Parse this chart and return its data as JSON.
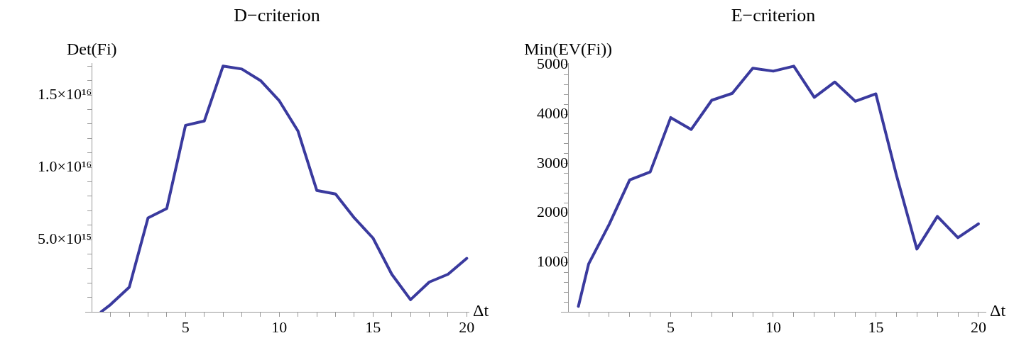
{
  "chart_data": [
    {
      "type": "line",
      "title": "D−criterion",
      "ylabel": "Det(Fi)",
      "xlabel": "Δt",
      "marker": "none",
      "x": [
        0.5,
        1,
        2,
        3,
        4,
        5,
        6,
        7,
        8,
        9,
        10,
        11,
        12,
        13,
        14,
        15,
        16,
        17,
        18,
        19,
        20
      ],
      "series": [
        {
          "color": "#3a3a9e",
          "values": [
            0,
            500000000000000.0,
            1700000000000000.0,
            6500000000000000.0,
            7150000000000000.0,
            1.29e+16,
            1.32e+16,
            1.7e+16,
            1.68e+16,
            1.6e+16,
            1.46e+16,
            1.25e+16,
            8400000000000000.0,
            8150000000000000.0,
            6500000000000000.0,
            5100000000000000.0,
            2600000000000000.0,
            840000000000000.0,
            2060000000000000.0,
            2600000000000000.0,
            3700000000000000.0
          ]
        }
      ],
      "xlim": [
        -0.35,
        20.1
      ],
      "ylim": [
        0,
        1.72e+16
      ],
      "xticks": [
        {
          "value": 1,
          "label": null
        },
        {
          "value": 2,
          "label": null
        },
        {
          "value": 3,
          "label": null
        },
        {
          "value": 4,
          "label": null
        },
        5,
        {
          "value": 6,
          "label": null
        },
        {
          "value": 7,
          "label": null
        },
        {
          "value": 8,
          "label": null
        },
        {
          "value": 9,
          "label": null
        },
        10,
        {
          "value": 11,
          "label": null
        },
        {
          "value": 12,
          "label": null
        },
        {
          "value": 13,
          "label": null
        },
        {
          "value": 14,
          "label": null
        },
        15,
        {
          "value": 16,
          "label": null
        },
        {
          "value": 17,
          "label": null
        },
        {
          "value": 18,
          "label": null
        },
        {
          "value": 19,
          "label": null
        },
        20
      ],
      "yticks": [
        {
          "value": 1000000000000000.0,
          "label": null
        },
        {
          "value": 2000000000000000.0,
          "label": null
        },
        {
          "value": 3000000000000000.0,
          "label": null
        },
        {
          "value": 4000000000000000.0,
          "label": null
        },
        {
          "value": 5000000000000000.0,
          "label": "5.0×10¹⁵"
        },
        {
          "value": 6000000000000000.0,
          "label": null
        },
        {
          "value": 7000000000000000.0,
          "label": null
        },
        {
          "value": 8000000000000000.0,
          "label": null
        },
        {
          "value": 9000000000000000.0,
          "label": null
        },
        {
          "value": 1e+16,
          "label": "1.0×10¹⁶"
        },
        {
          "value": 1.1e+16,
          "label": null
        },
        {
          "value": 1.2e+16,
          "label": null
        },
        {
          "value": 1.3e+16,
          "label": null
        },
        {
          "value": 1.4e+16,
          "label": null
        },
        {
          "value": 1.5e+16,
          "label": "1.5×10¹⁶"
        },
        {
          "value": 1.6e+16,
          "label": null
        },
        {
          "value": 1.7e+16,
          "label": null
        }
      ]
    },
    {
      "type": "line",
      "title": "E−criterion",
      "ylabel": "Min(EV(Fi))",
      "xlabel": "Δt",
      "marker": "none",
      "x": [
        0.5,
        1,
        2,
        3,
        4,
        5,
        6,
        7,
        8,
        9,
        10,
        11,
        12,
        13,
        14,
        15,
        16,
        17,
        18,
        19,
        20
      ],
      "series": [
        {
          "color": "#3a3a9e",
          "values": [
            110,
            970,
            1770,
            2670,
            2830,
            3930,
            3690,
            4280,
            4420,
            4930,
            4870,
            4970,
            4340,
            4650,
            4260,
            4410,
            2770,
            1270,
            1930,
            1500,
            1780
          ]
        }
      ],
      "xlim": [
        -0.35,
        20.35
      ],
      "ylim": [
        0,
        5030
      ],
      "xticks": [
        {
          "value": 1,
          "label": null
        },
        {
          "value": 2,
          "label": null
        },
        {
          "value": 3,
          "label": null
        },
        {
          "value": 4,
          "label": null
        },
        5,
        {
          "value": 6,
          "label": null
        },
        {
          "value": 7,
          "label": null
        },
        {
          "value": 8,
          "label": null
        },
        {
          "value": 9,
          "label": null
        },
        10,
        {
          "value": 11,
          "label": null
        },
        {
          "value": 12,
          "label": null
        },
        {
          "value": 13,
          "label": null
        },
        {
          "value": 14,
          "label": null
        },
        15,
        {
          "value": 16,
          "label": null
        },
        {
          "value": 17,
          "label": null
        },
        {
          "value": 18,
          "label": null
        },
        {
          "value": 19,
          "label": null
        },
        20
      ],
      "yticks": [
        {
          "value": 200,
          "label": null
        },
        {
          "value": 400,
          "label": null
        },
        {
          "value": 600,
          "label": null
        },
        {
          "value": 800,
          "label": null
        },
        1000,
        {
          "value": 1200,
          "label": null
        },
        {
          "value": 1400,
          "label": null
        },
        {
          "value": 1600,
          "label": null
        },
        {
          "value": 1800,
          "label": null
        },
        2000,
        {
          "value": 2200,
          "label": null
        },
        {
          "value": 2400,
          "label": null
        },
        {
          "value": 2600,
          "label": null
        },
        {
          "value": 2800,
          "label": null
        },
        3000,
        {
          "value": 3200,
          "label": null
        },
        {
          "value": 3400,
          "label": null
        },
        {
          "value": 3600,
          "label": null
        },
        {
          "value": 3800,
          "label": null
        },
        4000,
        {
          "value": 4200,
          "label": null
        },
        {
          "value": 4400,
          "label": null
        },
        {
          "value": 4600,
          "label": null
        },
        {
          "value": 4800,
          "label": null
        },
        5000
      ]
    }
  ]
}
